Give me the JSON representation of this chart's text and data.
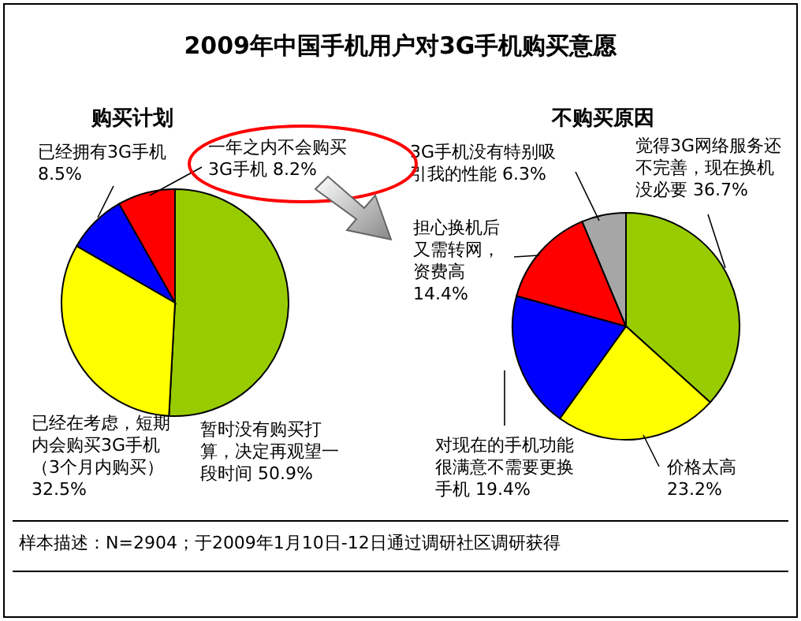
{
  "chart_data": [
    {
      "type": "pie",
      "title": "2009年中国手机用户对3G手机购买意愿",
      "subtitle": "购买计划",
      "categories": [
        "暂时没有购买打算，决定再观望一段时间",
        "已经在考虑，短期内会购买3G手机（3个月内购买）",
        "已经拥有3G手机",
        "一年之内不会购买3G手机"
      ],
      "values": [
        50.9,
        32.5,
        8.5,
        8.2
      ],
      "value_labels": [
        "50.9%",
        "32.5%",
        "8.5%",
        "8.2%"
      ],
      "colors": [
        "#99cc00",
        "#ffff00",
        "#0000ff",
        "#ff0000"
      ]
    },
    {
      "type": "pie",
      "title": "不购买原因",
      "categories": [
        "觉得3G网络服务还不完善，现在换机没必要",
        "价格太高",
        "对现在的手机功能很满意不需要更换手机",
        "担心换机后又需转网，资费高",
        "3G手机没有特别吸引我的性能"
      ],
      "values": [
        36.7,
        23.2,
        19.4,
        14.4,
        6.3
      ],
      "value_labels": [
        "36.7%",
        "23.2%",
        "19.4%",
        "14.4%",
        "6.3%"
      ],
      "colors": [
        "#99cc00",
        "#ffff00",
        "#0000ff",
        "#ff0000",
        "#a6a6a6"
      ],
      "annotations": [
        "样本描述：N=2904；于2009年1月10日-12日通过调研社区调研获得"
      ]
    }
  ]
}
